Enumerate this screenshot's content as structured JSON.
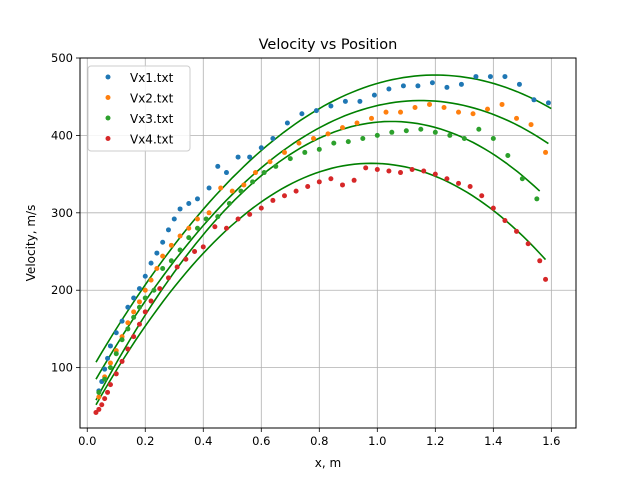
{
  "chart_data": {
    "type": "scatter",
    "title": "Velocity vs Position",
    "xlabel": "x, m",
    "ylabel": "Velocity, m/s",
    "xlim": [
      -0.025,
      1.685
    ],
    "ylim": [
      22,
      500
    ],
    "xticks": [
      "0.0",
      "0.2",
      "0.4",
      "0.6",
      "0.8",
      "1.0",
      "1.2",
      "1.4",
      "1.6"
    ],
    "xtick_values": [
      0.0,
      0.2,
      0.4,
      0.6,
      0.8,
      1.0,
      1.2,
      1.4,
      1.6
    ],
    "yticks": [
      "100",
      "200",
      "300",
      "400",
      "500"
    ],
    "ytick_values": [
      100,
      200,
      300,
      400,
      500
    ],
    "grid": true,
    "legend_position": "top-left",
    "fit_color": "#008000",
    "series": [
      {
        "name": "Vx1.txt",
        "color": "#1f77b4",
        "x": [
          0.04,
          0.05,
          0.06,
          0.07,
          0.08,
          0.1,
          0.12,
          0.14,
          0.16,
          0.18,
          0.2,
          0.22,
          0.24,
          0.26,
          0.28,
          0.3,
          0.32,
          0.35,
          0.38,
          0.42,
          0.45,
          0.48,
          0.52,
          0.56,
          0.6,
          0.64,
          0.69,
          0.74,
          0.79,
          0.84,
          0.89,
          0.94,
          0.99,
          1.04,
          1.09,
          1.14,
          1.19,
          1.24,
          1.29,
          1.34,
          1.39,
          1.44,
          1.49,
          1.54,
          1.59
        ],
        "y": [
          70,
          82,
          98,
          112,
          128,
          145,
          160,
          178,
          190,
          202,
          218,
          235,
          248,
          262,
          278,
          292,
          305,
          312,
          318,
          332,
          360,
          352,
          372,
          372,
          384,
          396,
          416,
          428,
          432,
          438,
          444,
          444,
          452,
          460,
          464,
          464,
          468,
          462,
          466,
          476,
          476,
          476,
          466,
          446,
          442
        ]
      },
      {
        "name": "Vx2.txt",
        "color": "#ff7f0e",
        "x": [
          0.04,
          0.06,
          0.08,
          0.1,
          0.12,
          0.14,
          0.16,
          0.18,
          0.2,
          0.22,
          0.24,
          0.26,
          0.29,
          0.32,
          0.35,
          0.38,
          0.42,
          0.46,
          0.5,
          0.54,
          0.58,
          0.63,
          0.68,
          0.73,
          0.78,
          0.83,
          0.88,
          0.93,
          0.98,
          1.03,
          1.08,
          1.13,
          1.18,
          1.23,
          1.28,
          1.33,
          1.38,
          1.43,
          1.48,
          1.53,
          1.58
        ],
        "y": [
          62,
          88,
          106,
          122,
          140,
          158,
          172,
          185,
          200,
          213,
          228,
          244,
          258,
          270,
          280,
          292,
          300,
          332,
          328,
          336,
          352,
          366,
          378,
          390,
          396,
          402,
          410,
          416,
          422,
          430,
          430,
          436,
          440,
          436,
          430,
          428,
          434,
          440,
          422,
          414,
          378
        ]
      },
      {
        "name": "Vx3.txt",
        "color": "#2ca02c",
        "x": [
          0.04,
          0.06,
          0.08,
          0.1,
          0.12,
          0.14,
          0.16,
          0.18,
          0.2,
          0.23,
          0.26,
          0.29,
          0.32,
          0.35,
          0.38,
          0.41,
          0.45,
          0.49,
          0.53,
          0.57,
          0.61,
          0.65,
          0.7,
          0.75,
          0.8,
          0.85,
          0.9,
          0.95,
          1.0,
          1.05,
          1.1,
          1.15,
          1.2,
          1.25,
          1.3,
          1.35,
          1.4,
          1.45,
          1.5,
          1.55
        ],
        "y": [
          68,
          85,
          100,
          118,
          136,
          150,
          165,
          178,
          190,
          200,
          228,
          238,
          252,
          268,
          280,
          292,
          295,
          312,
          328,
          340,
          352,
          360,
          370,
          378,
          382,
          390,
          392,
          396,
          400,
          404,
          406,
          408,
          404,
          400,
          396,
          408,
          396,
          374,
          344,
          318
        ]
      },
      {
        "name": "Vx4.txt",
        "color": "#d62728",
        "x": [
          0.03,
          0.04,
          0.05,
          0.06,
          0.07,
          0.08,
          0.1,
          0.12,
          0.14,
          0.16,
          0.18,
          0.2,
          0.22,
          0.25,
          0.28,
          0.31,
          0.34,
          0.37,
          0.4,
          0.44,
          0.48,
          0.52,
          0.56,
          0.6,
          0.64,
          0.68,
          0.72,
          0.76,
          0.8,
          0.84,
          0.88,
          0.92,
          0.96,
          1.0,
          1.04,
          1.08,
          1.12,
          1.16,
          1.2,
          1.24,
          1.28,
          1.32,
          1.36,
          1.4,
          1.44,
          1.48,
          1.52,
          1.56,
          1.58
        ],
        "y": [
          42,
          46,
          52,
          60,
          68,
          78,
          92,
          108,
          124,
          140,
          156,
          172,
          186,
          202,
          216,
          230,
          240,
          250,
          256,
          282,
          280,
          292,
          298,
          306,
          316,
          322,
          328,
          334,
          340,
          344,
          336,
          342,
          358,
          356,
          354,
          352,
          356,
          354,
          350,
          344,
          338,
          334,
          322,
          306,
          290,
          276,
          260,
          238,
          214
        ]
      }
    ],
    "fits": [
      {
        "series": "Vx1.txt",
        "x_range": [
          0.03,
          1.6
        ],
        "vertex_x": 1.2,
        "vertex_y": 478,
        "value_at_start": 107
      },
      {
        "series": "Vx2.txt",
        "x_range": [
          0.03,
          1.59
        ],
        "vertex_x": 1.15,
        "vertex_y": 445,
        "value_at_start": 85
      },
      {
        "series": "Vx3.txt",
        "x_range": [
          0.03,
          1.56
        ],
        "vertex_x": 1.05,
        "vertex_y": 418,
        "value_at_start": 58
      },
      {
        "series": "Vx4.txt",
        "x_range": [
          0.03,
          1.58
        ],
        "vertex_x": 0.98,
        "vertex_y": 364,
        "value_at_start": 52
      }
    ]
  }
}
